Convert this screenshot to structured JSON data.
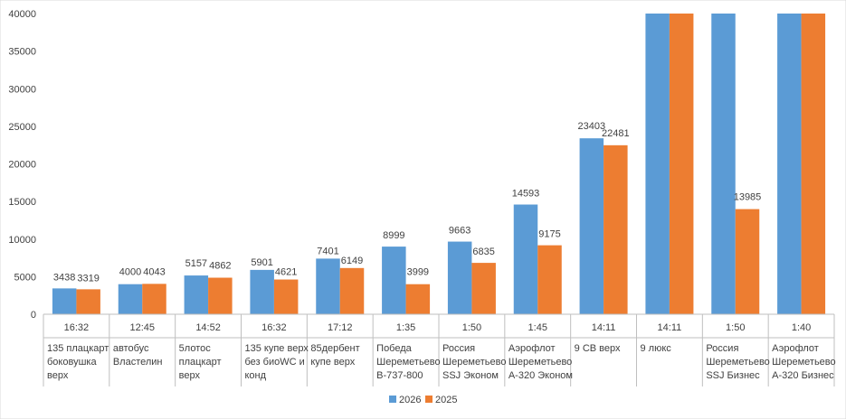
{
  "chart_data": {
    "type": "bar",
    "categories": [
      {
        "line1": "16:32",
        "line2": "135 плацкарт",
        "line3": "боковушка",
        "line4": "верх"
      },
      {
        "line1": "12:45",
        "line2": "автобус",
        "line3": "Властелин",
        "line4": ""
      },
      {
        "line1": "14:52",
        "line2": "5лотос",
        "line3": "плацкарт",
        "line4": "верх"
      },
      {
        "line1": "16:32",
        "line2": "135 купе верх",
        "line3": "без биоWC и",
        "line4": "конд"
      },
      {
        "line1": "17:12",
        "line2": "85дербент",
        "line3": "купе верх",
        "line4": ""
      },
      {
        "line1": "1:35",
        "line2": "Победа",
        "line3": "Шереметьево",
        "line4": "B-737-800"
      },
      {
        "line1": "1:50",
        "line2": "Россия",
        "line3": "Шереметьево",
        "line4": "SSJ Эконом"
      },
      {
        "line1": "1:45",
        "line2": "Аэрофлот",
        "line3": "Шереметьево",
        "line4": "A-320 Эконом"
      },
      {
        "line1": "14:11",
        "line2": "9 СВ верх",
        "line3": "",
        "line4": ""
      },
      {
        "line1": "14:11",
        "line2": "9 люкс",
        "line3": "",
        "line4": ""
      },
      {
        "line1": "1:50",
        "line2": "Россия",
        "line3": "Шереметьево",
        "line4": "SSJ Бизнес"
      },
      {
        "line1": "1:40",
        "line2": "Аэрофлот",
        "line3": "Шереметьево",
        "line4": "A-320 Бизнес"
      }
    ],
    "series": [
      {
        "name": "2026",
        "color": "#5B9BD5",
        "values": [
          3438,
          4000,
          5157,
          5901,
          7401,
          8999,
          9663,
          14593,
          23403,
          40000,
          40000,
          40000
        ],
        "labels": [
          "3438",
          "4000",
          "5157",
          "5901",
          "7401",
          "8999",
          "9663",
          "14593",
          "23403",
          "",
          "",
          ""
        ]
      },
      {
        "name": "2025",
        "color": "#ED7D31",
        "values": [
          3319,
          4043,
          4862,
          4621,
          6149,
          3999,
          6835,
          9175,
          22481,
          40000,
          13985,
          40000
        ],
        "labels": [
          "3319",
          "4043",
          "4862",
          "4621",
          "6149",
          "3999",
          "6835",
          "9175",
          "22481",
          "",
          "13985",
          ""
        ]
      }
    ],
    "yticks": [
      "0",
      "5000",
      "10000",
      "15000",
      "20000",
      "25000",
      "30000",
      "35000",
      "40000"
    ],
    "ylim": [
      0,
      40000
    ],
    "legend_position": "bottom",
    "grid": false
  }
}
